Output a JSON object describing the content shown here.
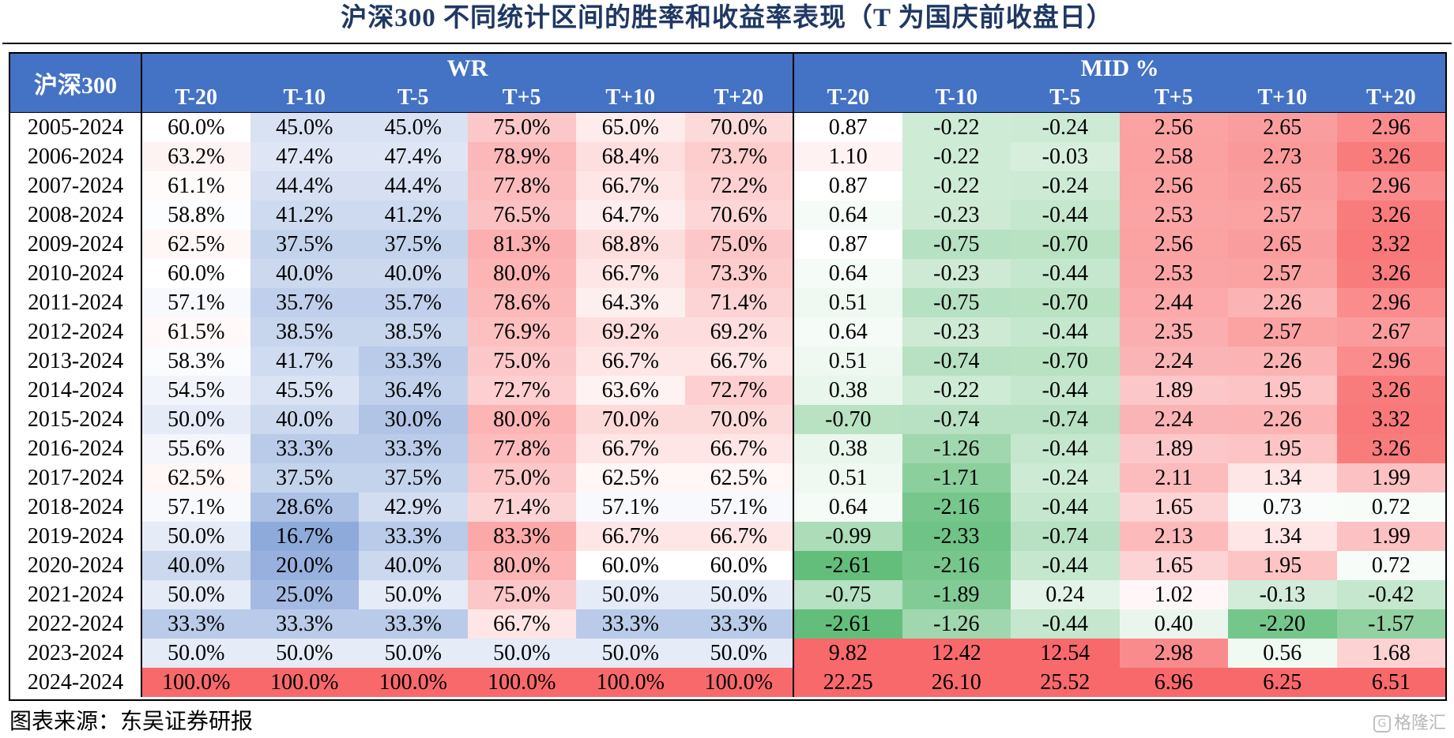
{
  "title": "沪深300 不同统计区间的胜率和收益率表现（T 为国庆前收盘日）",
  "source": "图表来源：东吴证券研报",
  "watermark": "格隆汇",
  "colors": {
    "header": "#4472c4",
    "high": "#f8696b",
    "low_wr": "#8eaadb",
    "low_mid": "#63be7b",
    "neutral": "#ffffff",
    "title": "#1f3864"
  },
  "chart_data": {
    "type": "table",
    "corner_label": "沪深300",
    "groups": [
      "WR",
      "MID %"
    ],
    "columns": [
      "T-20",
      "T-10",
      "T-5",
      "T+5",
      "T+10",
      "T+20"
    ],
    "rows": [
      {
        "period": "2005-2024",
        "wr": [
          "60.0%",
          "45.0%",
          "45.0%",
          "75.0%",
          "65.0%",
          "70.0%"
        ],
        "mid": [
          "0.87",
          "-0.22",
          "-0.24",
          "2.56",
          "2.65",
          "2.96"
        ]
      },
      {
        "period": "2006-2024",
        "wr": [
          "63.2%",
          "47.4%",
          "47.4%",
          "78.9%",
          "68.4%",
          "73.7%"
        ],
        "mid": [
          "1.10",
          "-0.22",
          "-0.03",
          "2.58",
          "2.73",
          "3.26"
        ]
      },
      {
        "period": "2007-2024",
        "wr": [
          "61.1%",
          "44.4%",
          "44.4%",
          "77.8%",
          "66.7%",
          "72.2%"
        ],
        "mid": [
          "0.87",
          "-0.22",
          "-0.24",
          "2.56",
          "2.65",
          "2.96"
        ]
      },
      {
        "period": "2008-2024",
        "wr": [
          "58.8%",
          "41.2%",
          "41.2%",
          "76.5%",
          "64.7%",
          "70.6%"
        ],
        "mid": [
          "0.64",
          "-0.23",
          "-0.44",
          "2.53",
          "2.57",
          "3.26"
        ]
      },
      {
        "period": "2009-2024",
        "wr": [
          "62.5%",
          "37.5%",
          "37.5%",
          "81.3%",
          "68.8%",
          "75.0%"
        ],
        "mid": [
          "0.87",
          "-0.75",
          "-0.70",
          "2.56",
          "2.65",
          "3.32"
        ]
      },
      {
        "period": "2010-2024",
        "wr": [
          "60.0%",
          "40.0%",
          "40.0%",
          "80.0%",
          "66.7%",
          "73.3%"
        ],
        "mid": [
          "0.64",
          "-0.23",
          "-0.44",
          "2.53",
          "2.57",
          "3.26"
        ]
      },
      {
        "period": "2011-2024",
        "wr": [
          "57.1%",
          "35.7%",
          "35.7%",
          "78.6%",
          "64.3%",
          "71.4%"
        ],
        "mid": [
          "0.51",
          "-0.75",
          "-0.70",
          "2.44",
          "2.26",
          "2.96"
        ]
      },
      {
        "period": "2012-2024",
        "wr": [
          "61.5%",
          "38.5%",
          "38.5%",
          "76.9%",
          "69.2%",
          "69.2%"
        ],
        "mid": [
          "0.64",
          "-0.23",
          "-0.44",
          "2.35",
          "2.57",
          "2.67"
        ]
      },
      {
        "period": "2013-2024",
        "wr": [
          "58.3%",
          "41.7%",
          "33.3%",
          "75.0%",
          "66.7%",
          "66.7%"
        ],
        "mid": [
          "0.51",
          "-0.74",
          "-0.70",
          "2.24",
          "2.26",
          "2.96"
        ]
      },
      {
        "period": "2014-2024",
        "wr": [
          "54.5%",
          "45.5%",
          "36.4%",
          "72.7%",
          "63.6%",
          "72.7%"
        ],
        "mid": [
          "0.38",
          "-0.22",
          "-0.44",
          "1.89",
          "1.95",
          "3.26"
        ]
      },
      {
        "period": "2015-2024",
        "wr": [
          "50.0%",
          "40.0%",
          "30.0%",
          "80.0%",
          "70.0%",
          "70.0%"
        ],
        "mid": [
          "-0.70",
          "-0.74",
          "-0.74",
          "2.24",
          "2.26",
          "3.32"
        ]
      },
      {
        "period": "2016-2024",
        "wr": [
          "55.6%",
          "33.3%",
          "33.3%",
          "77.8%",
          "66.7%",
          "66.7%"
        ],
        "mid": [
          "0.38",
          "-1.26",
          "-0.44",
          "1.89",
          "1.95",
          "3.26"
        ]
      },
      {
        "period": "2017-2024",
        "wr": [
          "62.5%",
          "37.5%",
          "37.5%",
          "75.0%",
          "62.5%",
          "62.5%"
        ],
        "mid": [
          "0.51",
          "-1.71",
          "-0.24",
          "2.11",
          "1.34",
          "1.99"
        ]
      },
      {
        "period": "2018-2024",
        "wr": [
          "57.1%",
          "28.6%",
          "42.9%",
          "71.4%",
          "57.1%",
          "57.1%"
        ],
        "mid": [
          "0.64",
          "-2.16",
          "-0.44",
          "1.65",
          "0.73",
          "0.72"
        ]
      },
      {
        "period": "2019-2024",
        "wr": [
          "50.0%",
          "16.7%",
          "33.3%",
          "83.3%",
          "66.7%",
          "66.7%"
        ],
        "mid": [
          "-0.99",
          "-2.33",
          "-0.74",
          "2.13",
          "1.34",
          "1.99"
        ]
      },
      {
        "period": "2020-2024",
        "wr": [
          "40.0%",
          "20.0%",
          "40.0%",
          "80.0%",
          "60.0%",
          "60.0%"
        ],
        "mid": [
          "-2.61",
          "-2.16",
          "-0.44",
          "1.65",
          "1.95",
          "0.72"
        ]
      },
      {
        "period": "2021-2024",
        "wr": [
          "50.0%",
          "25.0%",
          "50.0%",
          "75.0%",
          "50.0%",
          "50.0%"
        ],
        "mid": [
          "-0.75",
          "-1.89",
          "0.24",
          "1.02",
          "-0.13",
          "-0.42"
        ]
      },
      {
        "period": "2022-2024",
        "wr": [
          "33.3%",
          "33.3%",
          "33.3%",
          "66.7%",
          "33.3%",
          "33.3%"
        ],
        "mid": [
          "-2.61",
          "-1.26",
          "-0.44",
          "0.40",
          "-2.20",
          "-1.57"
        ]
      },
      {
        "period": "2023-2024",
        "wr": [
          "50.0%",
          "50.0%",
          "50.0%",
          "50.0%",
          "50.0%",
          "50.0%"
        ],
        "mid": [
          "9.82",
          "12.42",
          "12.54",
          "2.98",
          "0.56",
          "1.68"
        ]
      },
      {
        "period": "2024-2024",
        "wr": [
          "100.0%",
          "100.0%",
          "100.0%",
          "100.0%",
          "100.0%",
          "100.0%"
        ],
        "mid": [
          "22.25",
          "26.10",
          "25.52",
          "6.96",
          "6.25",
          "6.51"
        ]
      }
    ]
  }
}
